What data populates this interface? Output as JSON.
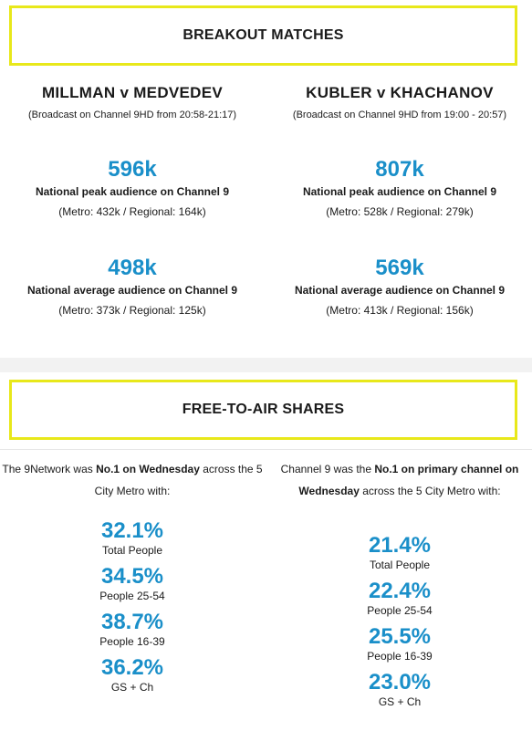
{
  "breakout": {
    "heading": "BREAKOUT MATCHES",
    "matches": [
      {
        "title": "MILLMAN v MEDVEDEV",
        "broadcast": "(Broadcast on Channel 9HD from 20:58-21:17)",
        "peak": {
          "value": "596k",
          "label": "National peak audience on Channel 9",
          "breakdown": "(Metro: 432k / Regional: 164k)"
        },
        "average": {
          "value": "498k",
          "label": "National average audience on Channel 9",
          "breakdown": "(Metro: 373k / Regional: 125k)"
        }
      },
      {
        "title": "KUBLER v KHACHANOV",
        "broadcast": "(Broadcast on Channel 9HD from 19:00 - 20:57)",
        "peak": {
          "value": "807k",
          "label": "National peak audience on Channel 9",
          "breakdown": "(Metro: 528k / Regional: 279k)"
        },
        "average": {
          "value": "569k",
          "label": "National average audience on Channel 9",
          "breakdown": "(Metro: 413k / Regional: 156k)"
        }
      }
    ]
  },
  "shares": {
    "heading": "FREE-TO-AIR SHARES",
    "left": {
      "intro_pre": "The 9Network was ",
      "intro_bold": "No.1 on Wednesday",
      "intro_post": " across the 5 City Metro with:",
      "items": [
        {
          "value": "32.1%",
          "label": "Total People"
        },
        {
          "value": "34.5%",
          "label": "People 25-54"
        },
        {
          "value": "38.7%",
          "label": "People 16-39"
        },
        {
          "value": "36.2%",
          "label": "GS + Ch"
        }
      ]
    },
    "right": {
      "intro_pre": "Channel 9 was the ",
      "intro_bold": "No.1 on primary channel on Wednesday",
      "intro_post": " across the 5 City Metro with:",
      "items": [
        {
          "value": "21.4%",
          "label": "Total People"
        },
        {
          "value": "22.4%",
          "label": "People 25-54"
        },
        {
          "value": "25.5%",
          "label": "People 16-39"
        },
        {
          "value": "23.0%",
          "label": "GS + Ch"
        }
      ]
    }
  },
  "colors": {
    "accent": "#1a8fc9",
    "border": "#e8e81a"
  }
}
